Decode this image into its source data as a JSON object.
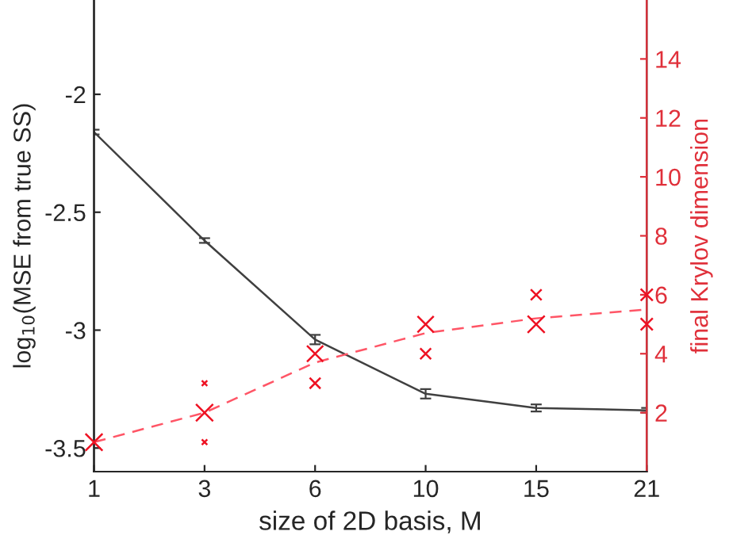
{
  "chart_data": {
    "type": "line",
    "xlabel": "size of 2D basis, M",
    "ylabel": "log$_{10}$(MSE from true SS)",
    "y2label": "final Krylov dimension",
    "categories": [
      "1",
      "3",
      "6",
      "10",
      "15",
      "21"
    ],
    "series": [
      {
        "color": "#404040",
        "values": [
          -2.16,
          -2.62,
          -3.04,
          -3.27,
          -3.33,
          -3.34
        ],
        "errors": [
          0.01,
          0.01,
          0.02,
          0.02,
          0.015,
          0.01
        ],
        "line_style": "solid"
      },
      {
        "axis": "y2",
        "color": "#ff5566",
        "values": [
          1.0,
          2.0,
          3.7,
          4.7,
          5.2,
          5.5
        ],
        "line_style": "dashed"
      },
      {
        "type": "bubble",
        "axis": "y2",
        "color": "#ee1122",
        "marker": "cross",
        "x": [
          "1",
          "3",
          "3",
          "3",
          "6",
          "6",
          "10",
          "10",
          "15",
          "15",
          "21",
          "21"
        ],
        "values": [
          1,
          2,
          3,
          1,
          4,
          3,
          5,
          4,
          6,
          5,
          6,
          5
        ],
        "sizes": [
          1,
          1,
          0.1,
          0.1,
          0.9,
          0.4,
          0.9,
          0.4,
          0.4,
          1,
          0.5,
          0.5
        ]
      }
    ],
    "ylim": [
      -3.6,
      -1.6
    ],
    "yticks": [
      {
        "value": -3.5,
        "label": "-3.5"
      },
      {
        "value": -3,
        "label": "-3"
      },
      {
        "value": -2.5,
        "label": "-2.5"
      },
      {
        "value": -2,
        "label": "-2"
      }
    ],
    "y2lim": [
      0,
      16
    ],
    "y2ticks": [
      2,
      4,
      6,
      8,
      10,
      12,
      14
    ],
    "grid": false,
    "legend": false
  }
}
